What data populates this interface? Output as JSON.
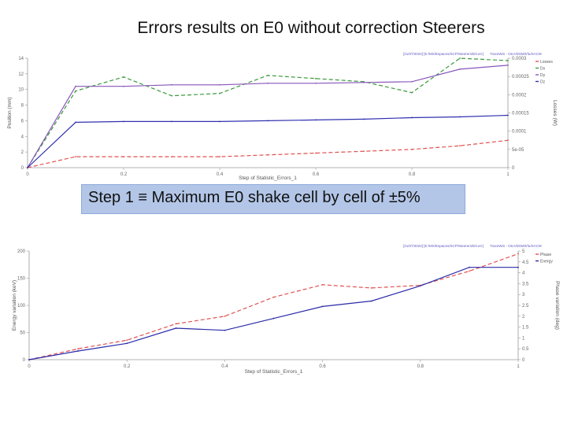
{
  "slide": {
    "title": "Errors results on E0 without correction Steerers",
    "step_note": "Step 1 ≡ Maximum E0 shake cell by cell of ±5%"
  },
  "chart_data": [
    {
      "type": "line",
      "header_left": "[21/07/2022] [E:/MX/Espaces/SCP/Steerers/E0.err]",
      "header_right": "TraceWin - CEA/DSM/Irfu/SACM",
      "x": [
        0,
        0.1,
        0.2,
        0.3,
        0.4,
        0.5,
        0.6,
        0.7,
        0.8,
        0.9,
        1.0
      ],
      "xlim": [
        0,
        1
      ],
      "xticks": [
        "0",
        "0.2",
        "0.4",
        "0.6",
        "0.8",
        "1"
      ],
      "xlabel": "Step of Statistic_Errors_1",
      "ylabel_left": "Position (mm)",
      "ylim_left": [
        0,
        14
      ],
      "yticks_left": [
        "0",
        "2",
        "4",
        "6",
        "8",
        "10",
        "12",
        "14"
      ],
      "ylabel_right": "Losses (W)",
      "ylim_right": [
        0,
        0.0003
      ],
      "yticks_right": [
        "0",
        "5e-05",
        "0.0001",
        "0.00015",
        "0.0002",
        "0.00025",
        "0.0003"
      ],
      "series": [
        {
          "name": "Losses",
          "axis": "right",
          "color": "#e05050",
          "dash": true,
          "values": [
            0,
            3e-05,
            3e-05,
            3e-05,
            3e-05,
            3.5e-05,
            4e-05,
            4.5e-05,
            5e-05,
            6e-05,
            7.5e-05
          ]
        },
        {
          "name": "Dx",
          "axis": "left",
          "color": "#3a9a3a",
          "dash": true,
          "values": [
            0,
            9.8,
            11.6,
            9.2,
            9.5,
            11.8,
            11.4,
            11.0,
            9.6,
            14.0,
            13.7
          ]
        },
        {
          "name": "Dy",
          "axis": "left",
          "color": "#8855bb",
          "dash": false,
          "values": [
            0,
            10.4,
            10.4,
            10.6,
            10.6,
            10.8,
            10.8,
            10.9,
            11.0,
            12.6,
            13.1
          ]
        },
        {
          "name": "Dz",
          "axis": "left",
          "color": "#3030b0",
          "dash": false,
          "values": [
            0,
            5.8,
            5.9,
            5.9,
            5.9,
            6.0,
            6.1,
            6.2,
            6.4,
            6.5,
            6.7
          ]
        }
      ]
    },
    {
      "type": "line",
      "header_left": "[21/07/2022] [E:/MX/Espaces/SCP/Steerers/E0.err]",
      "header_right": "TraceWin - CEA/DSM/Irfu/SACM",
      "x": [
        0,
        0.1,
        0.2,
        0.3,
        0.4,
        0.5,
        0.6,
        0.7,
        0.8,
        0.9,
        1.0
      ],
      "xlim": [
        0,
        1
      ],
      "xticks": [
        "0",
        "0.2",
        "0.4",
        "0.6",
        "0.8",
        "1"
      ],
      "xlabel": "Step of Statistic_Errors_1",
      "ylabel_left": "Energy variation (keV)",
      "ylim_left": [
        0,
        200
      ],
      "yticks_left": [
        "0",
        "50",
        "100",
        "150",
        "200"
      ],
      "ylabel_right": "Phase variation (deg)",
      "ylim_right": [
        0,
        5
      ],
      "yticks_right": [
        "0",
        "0.5",
        "1",
        "1.5",
        "2",
        "2.5",
        "3",
        "3.5",
        "4",
        "4.5",
        "5"
      ],
      "series": [
        {
          "name": "Phase",
          "axis": "left",
          "color": "#e05050",
          "dash": true,
          "values": [
            0,
            20,
            36,
            66,
            80,
            115,
            138,
            132,
            137,
            163,
            195
          ]
        },
        {
          "name": "Energy",
          "axis": "right",
          "color": "#2a2aa8",
          "dash": false,
          "values": [
            0,
            0.4,
            0.75,
            1.45,
            1.35,
            1.9,
            2.45,
            2.7,
            3.4,
            4.25,
            4.25
          ]
        }
      ]
    }
  ]
}
